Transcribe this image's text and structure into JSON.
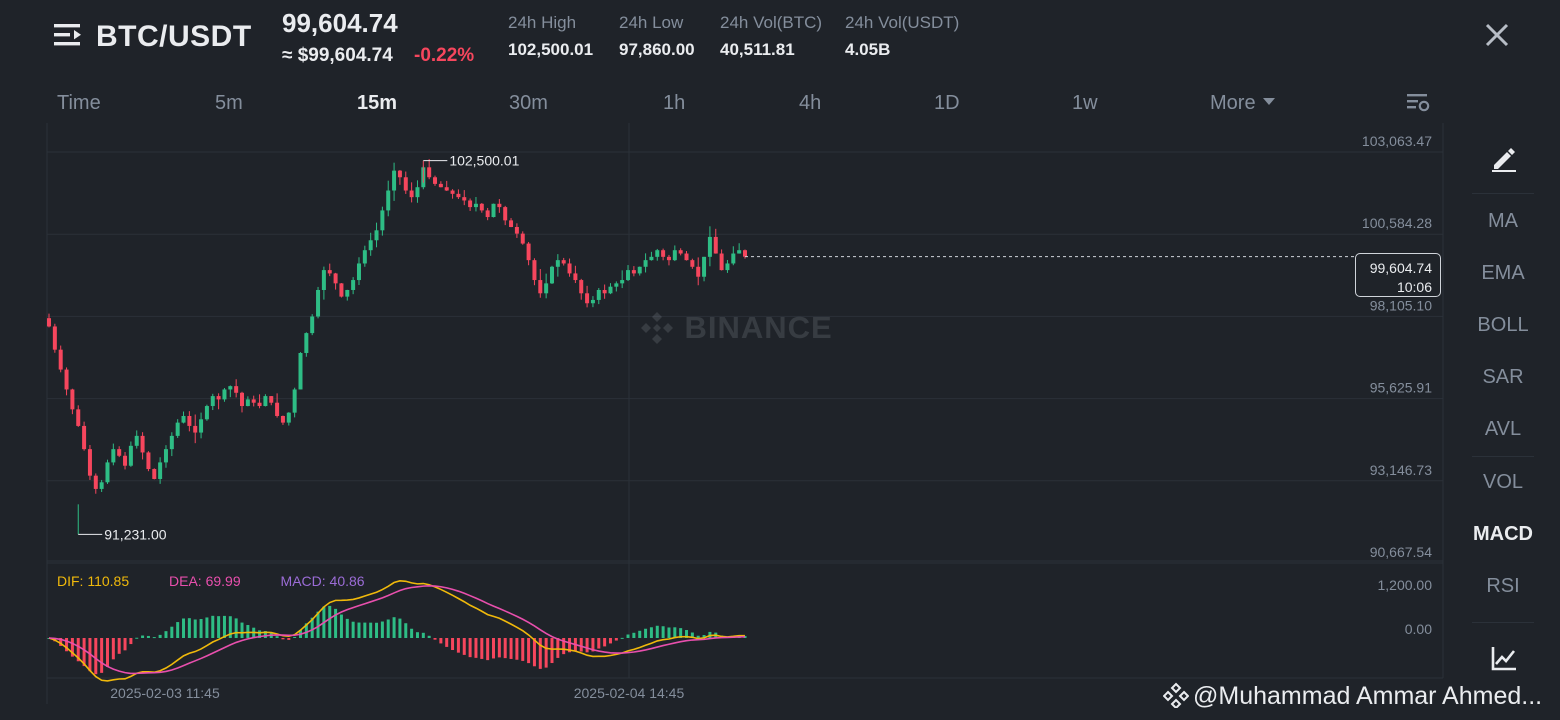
{
  "header": {
    "pair": "BTC/USDT",
    "price": "99,604.74",
    "approx_price": "≈ $99,604.74",
    "change": "-0.22%",
    "stats": [
      {
        "label": "24h High",
        "value": "102,500.01"
      },
      {
        "label": "24h Low",
        "value": "97,860.00"
      },
      {
        "label": "24h Vol(BTC)",
        "value": "40,511.81"
      },
      {
        "label": "24h Vol(USDT)",
        "value": "4.05B"
      }
    ]
  },
  "timeframes": [
    "Time",
    "5m",
    "15m",
    "30m",
    "1h",
    "4h",
    "1D",
    "1w",
    "More"
  ],
  "active_timeframe": "15m",
  "sidebar": {
    "indicators": [
      "MA",
      "EMA",
      "BOLL",
      "SAR",
      "AVL",
      "VOL",
      "MACD",
      "RSI"
    ],
    "active": "MACD"
  },
  "watermark": "@Muhammad Ammar Ahmed...",
  "brand_watermark": "BINANCE",
  "colors": {
    "up": "#2ebd85",
    "down": "#f6465d",
    "dif": "#f0b90b",
    "dea": "#e84fad",
    "macd": "#9b6cd6",
    "background": "#1f2329",
    "grid": "#2b3139"
  },
  "icons": [
    "menu-icon",
    "close-icon",
    "settings-icon",
    "pencil-icon",
    "chart-icon",
    "binance-logo-icon"
  ],
  "chart_data": {
    "type": "candlestick",
    "interval": "15m",
    "price_axis_ticks": [
      "103,063.47",
      "100,584.28",
      "98,105.10",
      "95,625.91",
      "93,146.73",
      "90,667.54"
    ],
    "y_range": [
      90667.54,
      103063.47
    ],
    "time_axis_ticks": [
      "2025-02-03 11:45",
      "2025-02-04 14:45"
    ],
    "last_price": "99,604.74",
    "countdown": "10:06",
    "high_label": "102,500.01",
    "low_label": "91,231.00",
    "close_series": [
      97500,
      96800,
      96200,
      95600,
      95000,
      94500,
      93800,
      93000,
      92600,
      92800,
      93400,
      93800,
      93600,
      93300,
      93900,
      94200,
      93700,
      93200,
      92900,
      93400,
      93800,
      94200,
      94600,
      94800,
      94500,
      94300,
      94700,
      95100,
      95400,
      95300,
      95600,
      95700,
      95500,
      95100,
      95300,
      95200,
      95100,
      95400,
      95200,
      94800,
      94600,
      94900,
      95600,
      96700,
      97300,
      97800,
      98600,
      99200,
      99100,
      98800,
      98400,
      98600,
      98900,
      99400,
      99800,
      100100,
      100400,
      101000,
      101600,
      102200,
      102000,
      101600,
      101400,
      101700,
      102300,
      102000,
      101800,
      101700,
      101600,
      101500,
      101400,
      101300,
      101100,
      101200,
      101000,
      100800,
      101200,
      101100,
      100700,
      100500,
      100300,
      100000,
      99500,
      98900,
      98500,
      98800,
      99300,
      99500,
      99400,
      99100,
      98900,
      98500,
      98200,
      98300,
      98600,
      98500,
      98700,
      98800,
      98900,
      99200,
      99100,
      99300,
      99500,
      99600,
      99800,
      99600,
      99500,
      99800,
      99700,
      99500,
      99300,
      99000,
      99600,
      100200,
      99700,
      99200,
      99400,
      99700,
      99800,
      99604.74
    ],
    "macd": {
      "dif": "110.85",
      "dea": "69.99",
      "macd": "40.86",
      "axis_ticks": [
        "1,200.00",
        "0.00"
      ]
    }
  }
}
